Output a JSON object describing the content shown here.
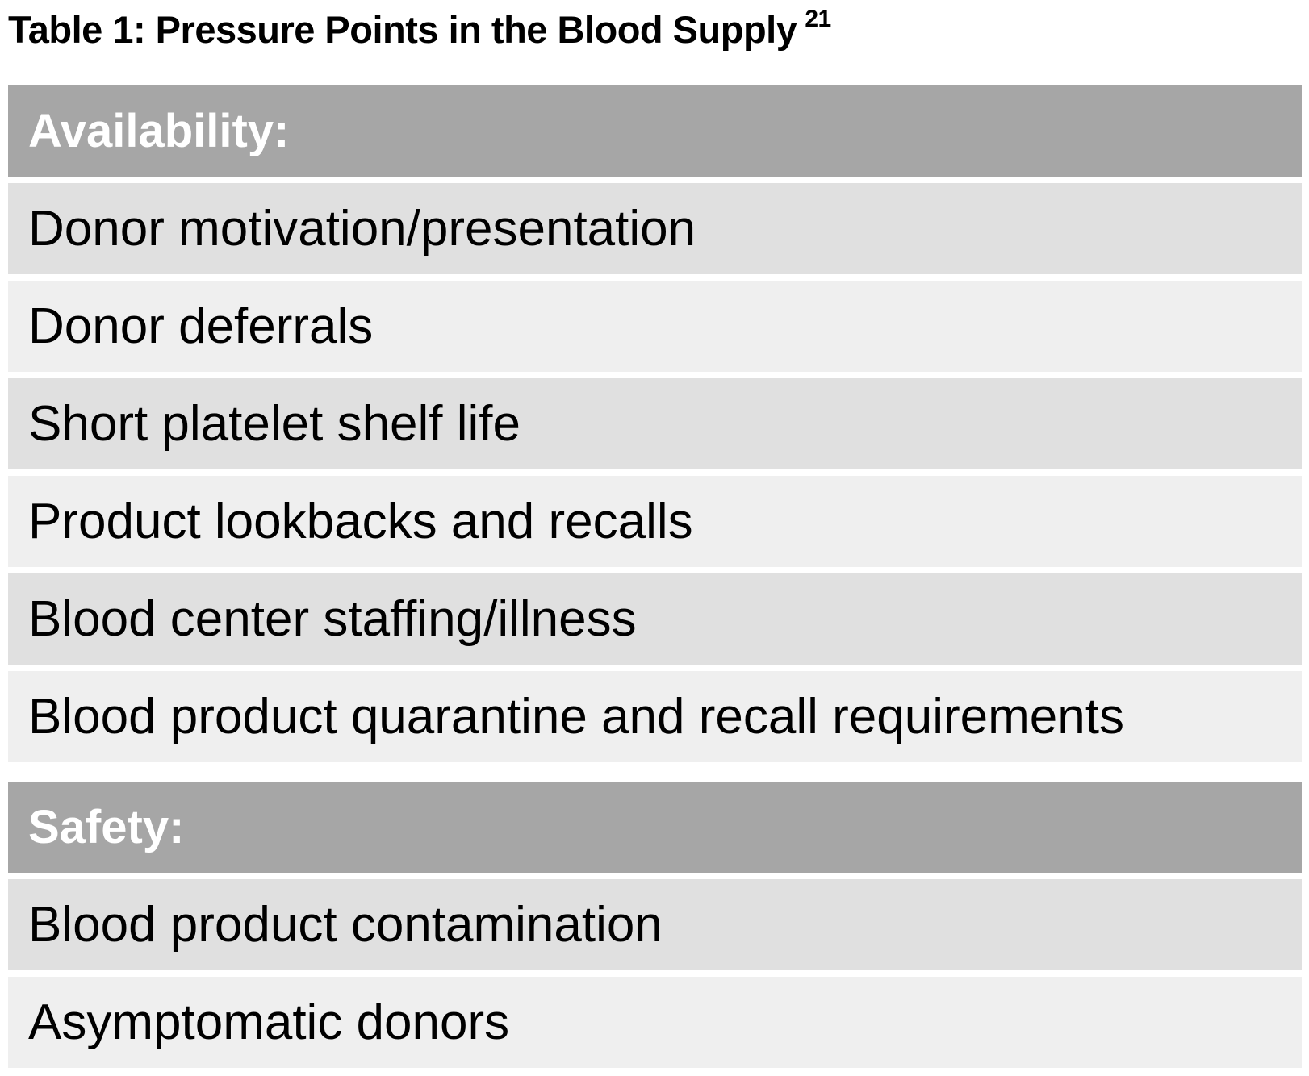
{
  "title": {
    "text": "Table 1: Pressure Points in the Blood Supply",
    "reference": "21"
  },
  "sections": [
    {
      "header": "Availability:",
      "rows": [
        "Donor motivation/presentation",
        "Donor deferrals",
        "Short platelet shelf life",
        "Product lookbacks and recalls",
        "Blood center staffing/illness",
        "Blood product quarantine and recall requirements"
      ]
    },
    {
      "header": "Safety:",
      "rows": [
        "Blood product contamination",
        "Asymptomatic donors"
      ]
    }
  ],
  "colors": {
    "header_bg": "#a6a6a6",
    "row_dark": "#e0e0e0",
    "row_light": "#efefef"
  }
}
